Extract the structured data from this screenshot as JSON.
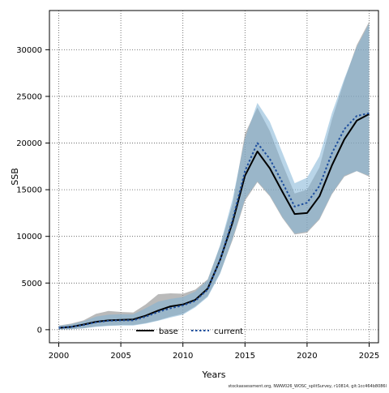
{
  "chart_data": {
    "type": "line",
    "title": "",
    "xlabel": "Years",
    "ylabel": "SSB",
    "xlim": [
      1999.25,
      2025.75
    ],
    "ylim": [
      -1400,
      34200
    ],
    "x_ticks": [
      2000,
      2005,
      2010,
      2015,
      2020,
      2025
    ],
    "y_ticks": [
      0,
      5000,
      10000,
      15000,
      20000,
      25000,
      30000
    ],
    "x_tick_labels": [
      "2000",
      "2005",
      "2010",
      "2015",
      "2020",
      "2025"
    ],
    "y_tick_labels": [
      "0",
      "5000",
      "10000",
      "15000",
      "20000",
      "25000",
      "30000"
    ],
    "grid": true,
    "legend_position": "bottom-center",
    "x": [
      2000,
      2001,
      2002,
      2003,
      2004,
      2005,
      2006,
      2007,
      2008,
      2009,
      2010,
      2011,
      2012,
      2013,
      2014,
      2015,
      2016,
      2017,
      2018,
      2019,
      2020,
      2021,
      2022,
      2023,
      2024,
      2025
    ],
    "series": [
      {
        "name": "base",
        "line_color": "#000000",
        "line_style": "solid",
        "band_color": "#8c8c8c",
        "values": [
          200,
          300,
          550,
          850,
          1000,
          1050,
          1100,
          1500,
          2050,
          2500,
          2700,
          3200,
          4400,
          7500,
          11500,
          16500,
          19100,
          17300,
          14800,
          12400,
          12500,
          14300,
          17600,
          20400,
          22400,
          23100
        ],
        "lower": [
          30,
          60,
          150,
          350,
          450,
          500,
          500,
          700,
          1000,
          1400,
          1700,
          2500,
          3600,
          6100,
          9600,
          13800,
          15800,
          14300,
          12000,
          10200,
          10400,
          11800,
          14500,
          16400,
          17000,
          16400
        ],
        "upper": [
          450,
          650,
          1000,
          1700,
          2000,
          1900,
          1850,
          2700,
          3800,
          3900,
          3850,
          4300,
          5400,
          9000,
          13500,
          21000,
          23800,
          21300,
          17800,
          14600,
          15000,
          17400,
          22500,
          26700,
          30500,
          33000
        ]
      },
      {
        "name": "current",
        "line_color": "#1f4f9e",
        "line_style": "dashed",
        "band_color": "#7fb3d5",
        "values": [
          200,
          300,
          500,
          800,
          950,
          1000,
          1000,
          1400,
          1900,
          2300,
          2600,
          3100,
          4300,
          7500,
          11800,
          17000,
          20000,
          18300,
          15800,
          13200,
          13600,
          15400,
          18900,
          21500,
          22900,
          23200
        ],
        "lower": [
          20,
          60,
          150,
          300,
          400,
          450,
          450,
          650,
          950,
          1300,
          1600,
          2400,
          3500,
          6000,
          9800,
          14000,
          15900,
          14400,
          12100,
          10300,
          10500,
          11900,
          14600,
          16500,
          17000,
          16500
        ],
        "upper": [
          400,
          600,
          900,
          1400,
          1600,
          1650,
          1650,
          2300,
          3000,
          3300,
          3500,
          4100,
          5300,
          9100,
          14000,
          20500,
          24300,
          22300,
          19000,
          15700,
          16300,
          18600,
          23200,
          26900,
          30300,
          32800
        ]
      }
    ],
    "footnote": "stockassessment.org, NWW026_WOSC_splitSurvey, r10814, git:1cc464b8086l"
  }
}
